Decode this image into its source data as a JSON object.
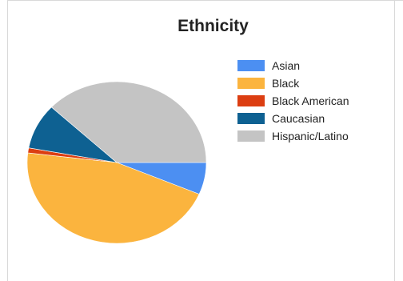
{
  "chart_data": {
    "type": "pie",
    "title": "Ethnicity",
    "legend_position": "right",
    "series": [
      {
        "name": "Asian",
        "value": 6.4,
        "color": "#4c8ff2"
      },
      {
        "name": "Black",
        "value": 45.5,
        "color": "#fbb43e"
      },
      {
        "name": "Black American",
        "value": 1.0,
        "color": "#dc3e12"
      },
      {
        "name": "Caucasian",
        "value": 9.1,
        "color": "#0e6192"
      },
      {
        "name": "Hispanic/Latino",
        "value": 38.0,
        "color": "#c4c4c4"
      }
    ]
  }
}
